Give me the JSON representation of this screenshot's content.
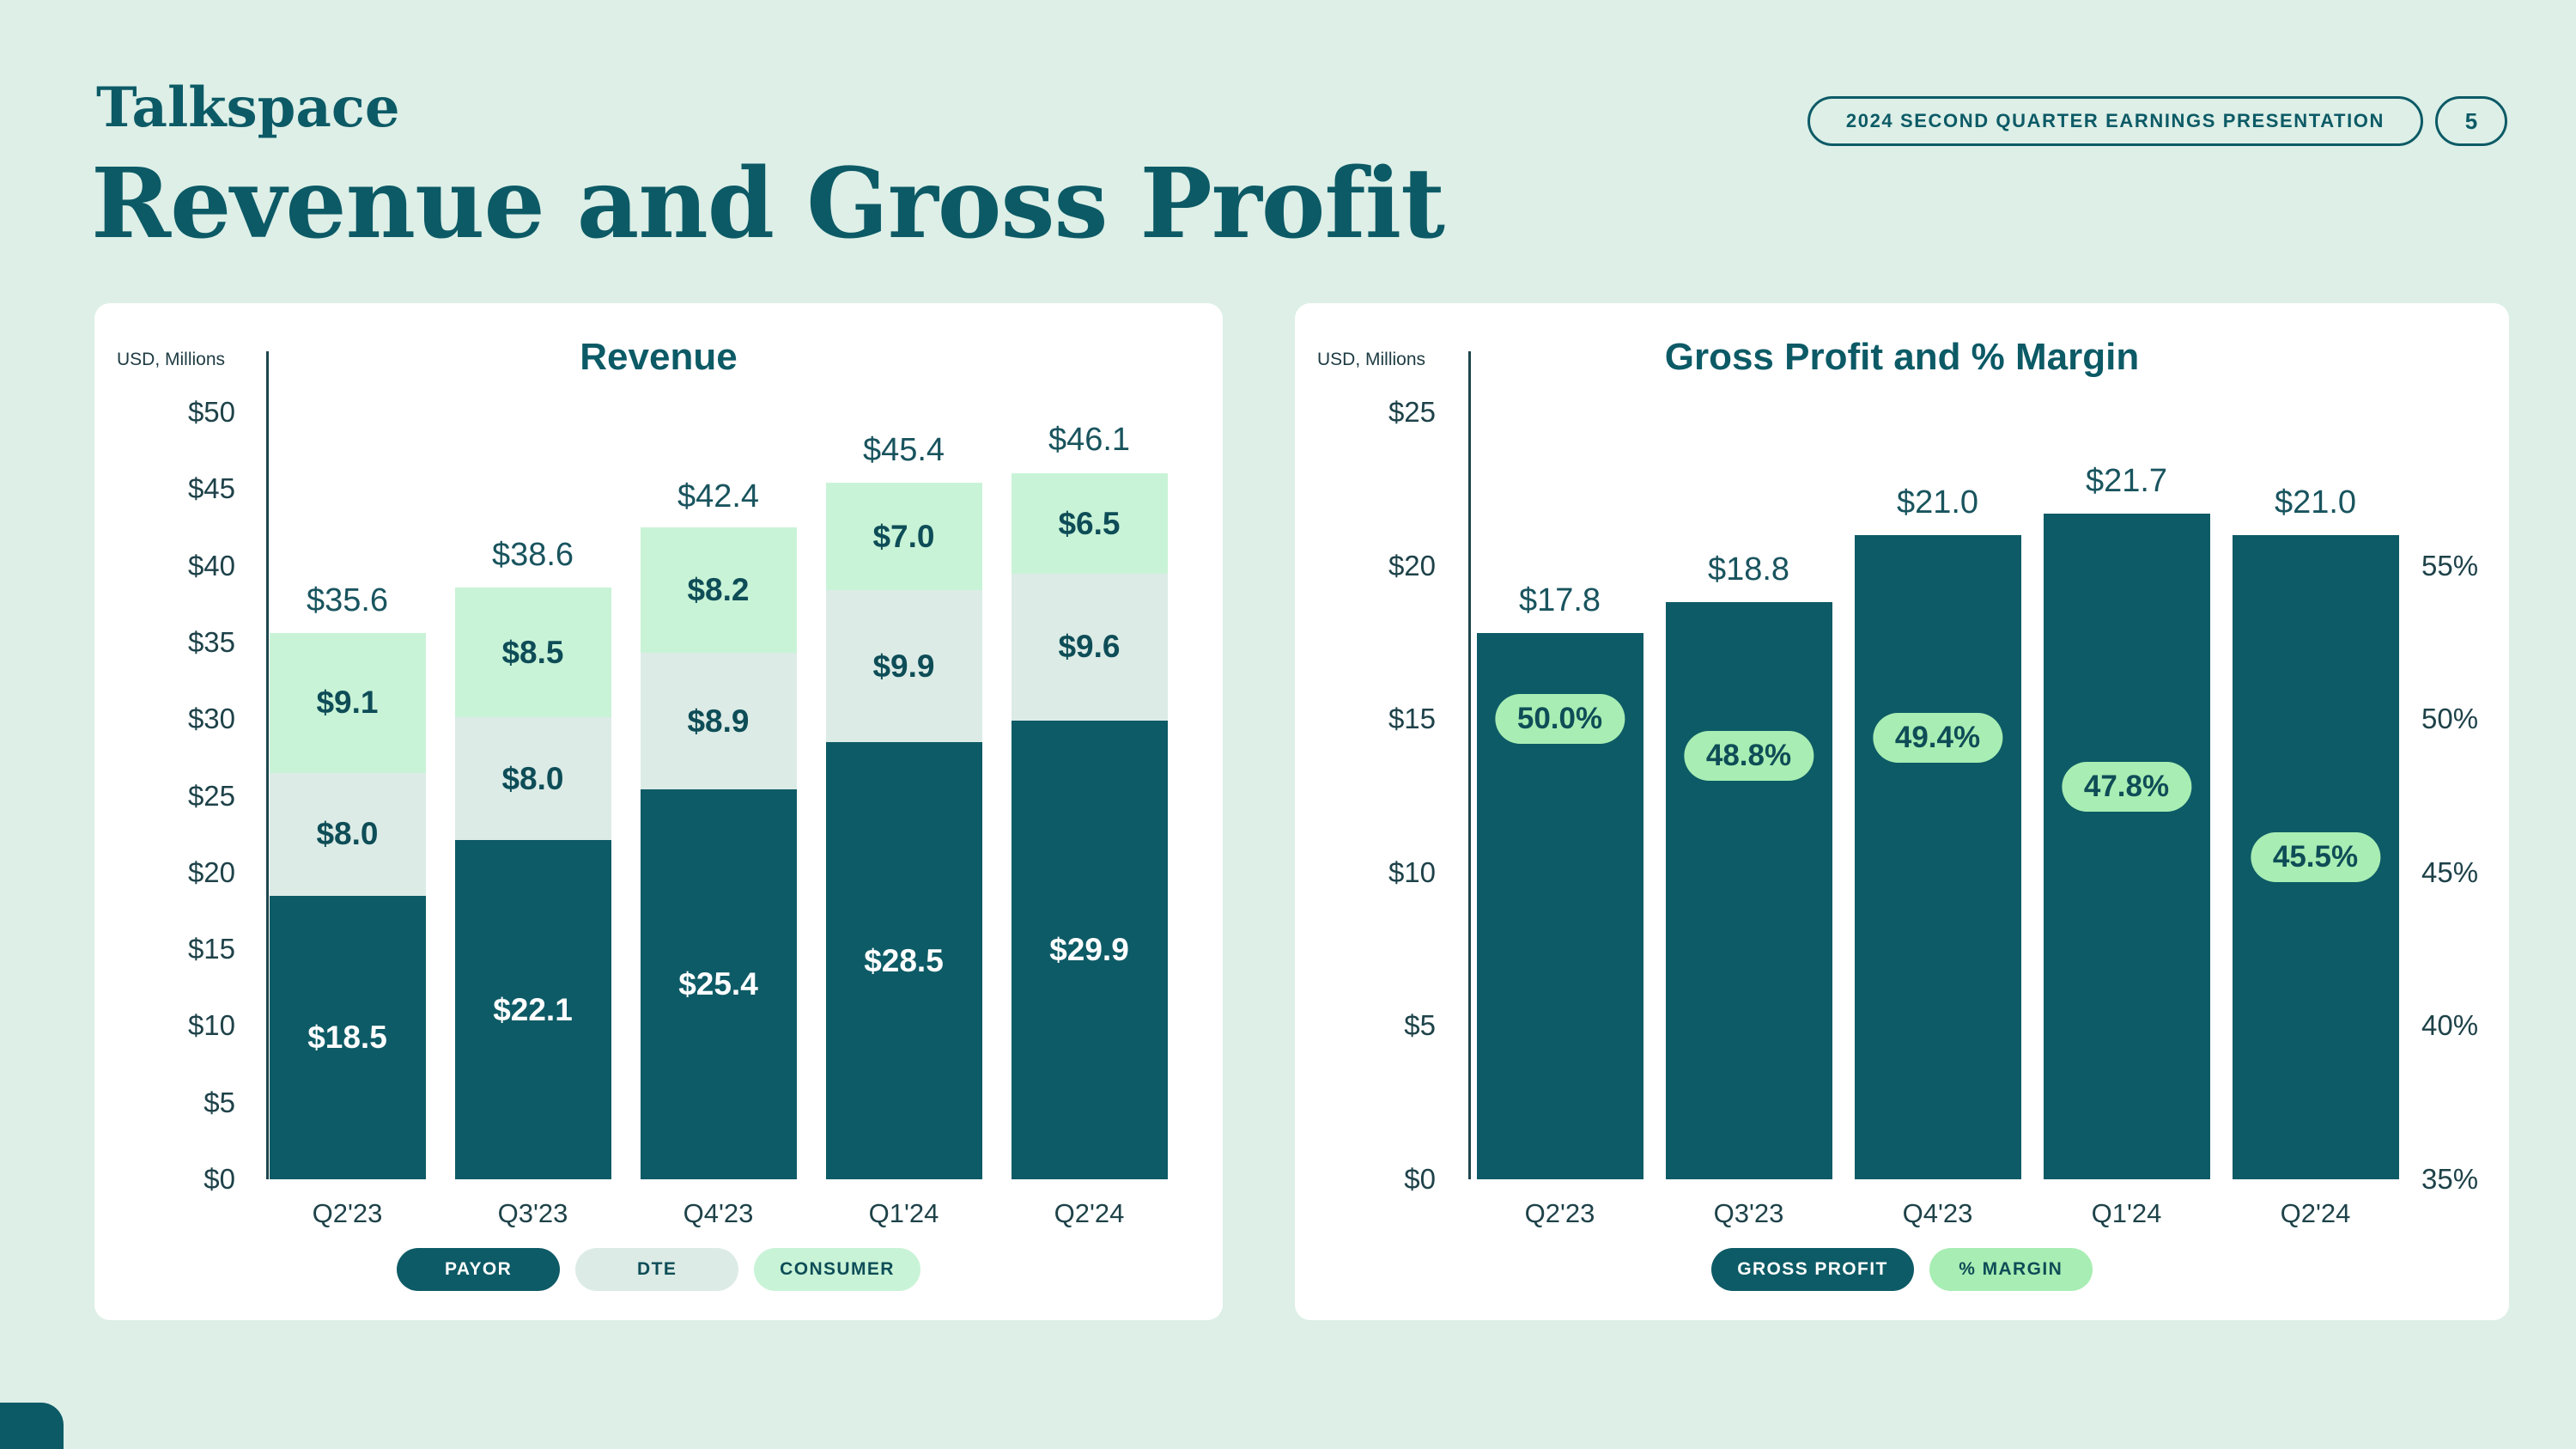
{
  "header": {
    "logo": "Talkspace",
    "badge": "2024 SECOND QUARTER EARNINGS PRESENTATION",
    "page_number": "5"
  },
  "title": "Revenue and Gross Profit",
  "colors": {
    "background": "#ddefe7",
    "brand_teal": "#0c5a66",
    "card_white": "#ffffff",
    "pale_segment": "#dcebe6",
    "mint_segment": "#c9f3d7",
    "margin_green": "#a8edb3"
  },
  "chart_data": [
    {
      "type": "bar",
      "stacked": true,
      "title": "Revenue",
      "axis_note": "USD, Millions",
      "categories": [
        "Q2'23",
        "Q3'23",
        "Q4'23",
        "Q1'24",
        "Q2'24"
      ],
      "series": [
        {
          "name": "PAYOR",
          "values": [
            18.5,
            22.1,
            25.4,
            28.5,
            29.9
          ],
          "color": "#0d5b66",
          "text_color": "#ffffff"
        },
        {
          "name": "DTE",
          "values": [
            8.0,
            8.0,
            8.9,
            9.9,
            9.6
          ],
          "color": "#dcebe6",
          "text_color": "#0e4d57"
        },
        {
          "name": "CONSUMER",
          "values": [
            9.1,
            8.5,
            8.2,
            7.0,
            6.5
          ],
          "color": "#c9f3d7",
          "text_color": "#0e4d57"
        }
      ],
      "totals": [
        35.6,
        38.6,
        42.4,
        45.4,
        46.1
      ],
      "ylim": [
        0,
        50
      ],
      "yticks": [
        0,
        5,
        10,
        15,
        20,
        25,
        30,
        35,
        40,
        45,
        50
      ],
      "legend_position": "bottom",
      "grid": false
    },
    {
      "type": "bar",
      "title": "Gross Profit and % Margin",
      "axis_note": "USD, Millions",
      "categories": [
        "Q2'23",
        "Q3'23",
        "Q4'23",
        "Q1'24",
        "Q2'24"
      ],
      "series": [
        {
          "name": "GROSS PROFIT",
          "values": [
            17.8,
            18.8,
            21.0,
            21.7,
            21.0
          ],
          "color": "#0d5b66",
          "text_color": "#ffffff"
        },
        {
          "name": "% MARGIN",
          "values": [
            50.0,
            48.8,
            49.4,
            47.8,
            45.5
          ],
          "color": "#a8edb3",
          "text_color": "#0e4d57"
        }
      ],
      "ylim_left": [
        0,
        25
      ],
      "yticks_left": [
        0,
        5,
        10,
        15,
        20,
        25
      ],
      "right_axis": {
        "min": 35,
        "ticks": [
          35,
          40,
          45,
          50,
          55
        ],
        "unit": "%"
      },
      "legend_position": "bottom",
      "grid": false
    }
  ]
}
